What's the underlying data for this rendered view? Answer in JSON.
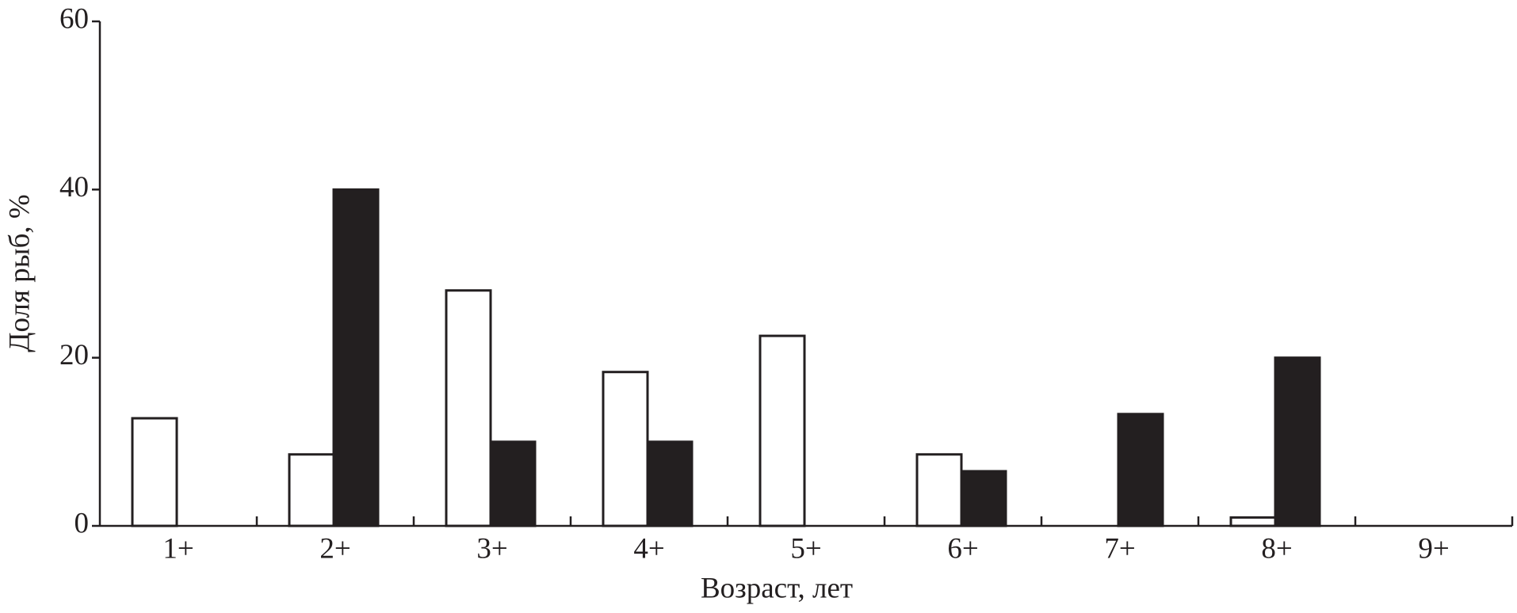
{
  "chart_data": {
    "type": "bar",
    "xlabel": "Возраст, лет",
    "ylabel": "Доля рыб, %",
    "categories": [
      "1+",
      "2+",
      "3+",
      "4+",
      "5+",
      "6+",
      "7+",
      "8+",
      "9+"
    ],
    "series": [
      {
        "color": "#ffffff",
        "values": [
          12.8,
          8.5,
          28,
          18.3,
          22.6,
          8.5,
          0,
          1,
          0
        ]
      },
      {
        "color": "#231f20",
        "values": [
          0,
          40,
          10,
          10,
          0,
          6.5,
          13.3,
          20,
          0
        ]
      }
    ],
    "edgecolor": "#231f20",
    "ylim": [
      0,
      60
    ],
    "yticks": [
      0,
      20,
      40,
      60
    ]
  }
}
